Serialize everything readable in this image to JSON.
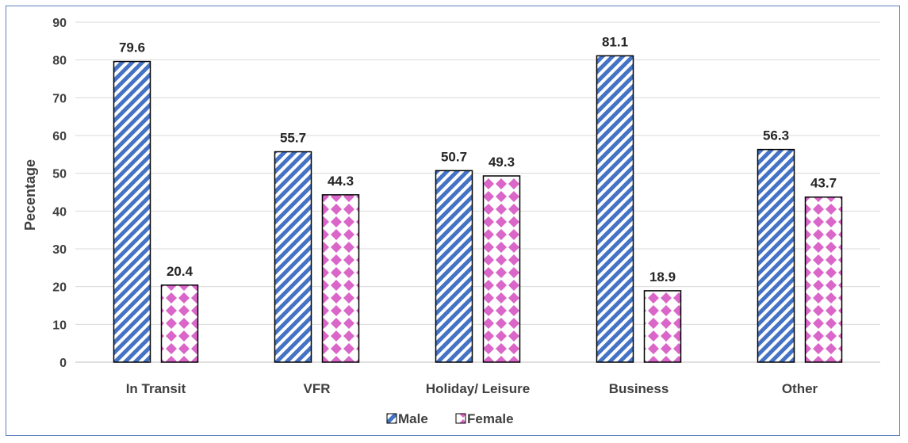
{
  "chart_data": {
    "type": "bar",
    "categories": [
      "In Transit",
      "VFR",
      "Holiday/ Leisure",
      "Business",
      "Other"
    ],
    "series": [
      {
        "name": "Male",
        "values": [
          79.6,
          55.7,
          50.7,
          81.1,
          56.3
        ]
      },
      {
        "name": "Female",
        "values": [
          20.4,
          44.3,
          49.3,
          18.9,
          43.7
        ]
      }
    ],
    "title": "",
    "xlabel": "",
    "ylabel": "Pecentage",
    "ylim": [
      0,
      90
    ],
    "yticks": [
      "0",
      "10",
      "20",
      "30",
      "40",
      "50",
      "60",
      "70",
      "80",
      "90"
    ],
    "grid": true,
    "legend": "bottom",
    "colors": {
      "male": "#4472c4",
      "female": "#d966c8",
      "border": "#000000",
      "grid": "#d9d9d9",
      "frame": "#5b7fbf"
    }
  }
}
